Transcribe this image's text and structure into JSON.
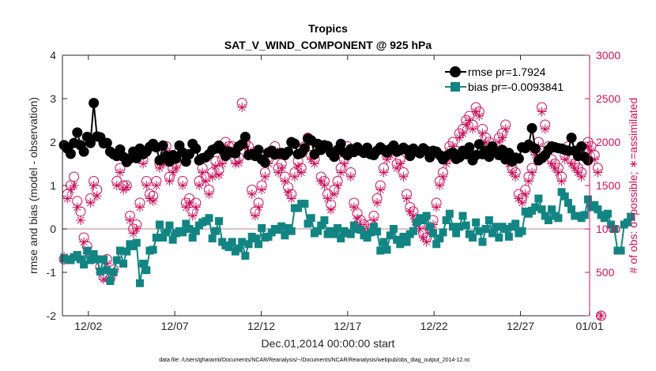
{
  "chart_data": {
    "type": "line",
    "title": "Tropics",
    "subtitle": "SAT_V_WIND_COMPONENT @ 925 hPa",
    "xlabel": "Dec.01,2014 00:00:00 start",
    "ylabel": "rmse and bias (model - observation)",
    "y2label": "# of obs: o=possible; ∗=assimilated",
    "footnote": "data file: /Users/gharamti/Documents/NCAR/Reanalysis/~/Documents/NCAR/Reanalysis/webpub/obs_diag_output_2014-12.nc",
    "xlim": [
      0.5,
      31.0
    ],
    "ylim": [
      -2,
      4
    ],
    "y2lim": [
      0,
      3000
    ],
    "xticks": [
      {
        "day": 2,
        "label": "12/02"
      },
      {
        "day": 7,
        "label": "12/07"
      },
      {
        "day": 12,
        "label": "12/12"
      },
      {
        "day": 17,
        "label": "12/17"
      },
      {
        "day": 22,
        "label": "12/22"
      },
      {
        "day": 27,
        "label": "12/27"
      },
      {
        "day": 32,
        "label": "01/01"
      }
    ],
    "yticks": [
      -2,
      -1,
      0,
      1,
      2,
      3,
      4
    ],
    "y2ticks": [
      0,
      500,
      1000,
      1500,
      2000,
      2500,
      3000
    ],
    "colors": {
      "rmse": "#000000",
      "bias": "#128583",
      "obs": "#c8105a",
      "zero": "#c8a0a8"
    },
    "series": [
      {
        "name": "rmse",
        "legend": "rmse pr=1.7924",
        "color": "#000000",
        "values": [
          1.93,
          1.85,
          1.73,
          1.98,
          2.22,
          1.93,
          1.78,
          2.12,
          1.98,
          2.9,
          2.13,
          2.11,
          1.97,
          1.98,
          1.78,
          1.72,
          1.68,
          1.83,
          1.66,
          1.54,
          1.62,
          1.78,
          1.63,
          1.85,
          1.72,
          1.78,
          1.89,
          1.96,
          1.88,
          1.58,
          1.92,
          1.68,
          1.55,
          1.7,
          1.62,
          1.92,
          1.76,
          1.55,
          1.72,
          1.96,
          1.85,
          1.58,
          1.63,
          1.65,
          1.72,
          1.82,
          1.85,
          1.92,
          1.82,
          1.68,
          1.78,
          1.76,
          1.74,
          1.9,
          1.95,
          2.12,
          1.7,
          1.72,
          1.68,
          1.82,
          1.6,
          1.53,
          1.76,
          1.8,
          1.71,
          1.73,
          1.75,
          1.7,
          1.78,
          2.0,
          1.96,
          1.72,
          1.75,
          1.86,
          2.08,
          2.04,
          1.72,
          1.96,
          1.82,
          1.93,
          1.91,
          1.75,
          1.66,
          1.82,
          1.96,
          1.76,
          1.7,
          1.84,
          1.77,
          1.88,
          1.8,
          1.75,
          1.87,
          1.72,
          1.7,
          1.8,
          1.88,
          1.82,
          1.76,
          1.84,
          1.92,
          1.78,
          1.82,
          1.87,
          1.82,
          1.68,
          1.85,
          1.78,
          1.74,
          1.86,
          1.8,
          1.65,
          1.8,
          1.78,
          1.7,
          1.6,
          1.68,
          1.72,
          1.76,
          1.61,
          1.65,
          1.8,
          1.72,
          1.88,
          1.58,
          1.7,
          1.95,
          1.72,
          1.8,
          1.66,
          1.9,
          1.78,
          1.7,
          1.82,
          1.6,
          1.75,
          1.55,
          1.64,
          1.62,
          1.88,
          1.86,
          1.94,
          2.32,
          1.85,
          1.58,
          1.63,
          1.7,
          1.82,
          1.9,
          1.88,
          1.86,
          1.85,
          1.82,
          1.8,
          2.1,
          1.8,
          1.68,
          1.9,
          1.66,
          1.58
        ]
      },
      {
        "name": "bias",
        "legend": "bias pr=-0.0093841",
        "color": "#128583",
        "values": [
          -0.68,
          -0.7,
          -0.72,
          -0.65,
          -0.6,
          -0.7,
          -0.82,
          -0.5,
          -0.72,
          -0.58,
          -0.7,
          -0.98,
          -0.7,
          -0.95,
          -1.2,
          -1.0,
          -0.72,
          -0.5,
          -0.8,
          -0.52,
          -0.35,
          -0.4,
          -0.32,
          -1.25,
          -0.8,
          -0.95,
          -0.5,
          -0.48,
          -0.2,
          0.1,
          -0.2,
          -0.08,
          0.08,
          -0.25,
          -0.1,
          -0.05,
          -0.08,
          0.12,
          0.0,
          -0.2,
          -0.05,
          0.08,
          0.15,
          0.18,
          0.25,
          -0.22,
          -0.05,
          0.18,
          -0.3,
          -0.38,
          -0.42,
          -0.3,
          -0.52,
          -0.45,
          -0.3,
          -0.62,
          -0.35,
          -0.18,
          -0.22,
          -0.35,
          0.02,
          -0.2,
          -0.18,
          -0.08,
          0.0,
          -0.02,
          0.06,
          -0.15,
          0.02,
          -0.05,
          0.48,
          0.48,
          0.58,
          0.58,
          0.12,
          0.25,
          -0.1,
          -0.05,
          0.08,
          0.2,
          -0.12,
          -0.05,
          -0.12,
          0.02,
          -0.22,
          -0.05,
          -0.1,
          -0.12,
          0.08,
          0.0,
          -0.02,
          -0.15,
          -0.2,
          -0.08,
          0.05,
          -0.06,
          -0.5,
          -0.3,
          -0.48,
          -0.15,
          0.0,
          -0.25,
          -0.35,
          -0.18,
          -0.3,
          -0.12,
          -0.05,
          0.15,
          0.25,
          0.2,
          0.3,
          0.05,
          -0.1,
          -0.35,
          -0.22,
          -0.08,
          0.2,
          0.35,
          0.05,
          -0.1,
          0.05,
          0.3,
          0.08,
          -0.12,
          -0.2,
          0.15,
          -0.05,
          -0.3,
          0.0,
          0.2,
          -0.1,
          0.05,
          -0.2,
          0.05,
          0.0,
          -0.18,
          0.05,
          0.12,
          -0.1,
          -0.05,
          0.4,
          0.35,
          0.42,
          0.5,
          0.7,
          0.45,
          0.3,
          0.2,
          0.45,
          0.3,
          0.25,
          0.85,
          0.75,
          0.6,
          0.45,
          0.3,
          0.3,
          0.25,
          0.32,
          0.68,
          0.5,
          0.55,
          0.45,
          0.32,
          0.25,
          0.35,
          0.1,
          0.0,
          -0.5,
          -0.5,
          0.1,
          0.15,
          0.28
        ]
      },
      {
        "name": "possible",
        "legend": "",
        "axis": "right",
        "color": "#c8105a",
        "values": [
          650,
          1400,
          1500,
          1600,
          1320,
          1200,
          900,
          800,
          1350,
          1550,
          1450,
          560,
          450,
          650,
          430,
          530,
          1550,
          1700,
          1500,
          1500,
          1150,
          1000,
          1050,
          1300,
          1800,
          1550,
          1400,
          1380,
          1550,
          1750,
          1800,
          1950,
          1600,
          1700,
          1750,
          1900,
          1550,
          1300,
          1350,
          1200,
          1300,
          1550,
          1700,
          1600,
          1450,
          1650,
          1780,
          1680,
          1800,
          2000,
          1950,
          1950,
          1800,
          1820,
          2450,
          2000,
          1950,
          1450,
          1200,
          1300,
          1500,
          1650,
          1800,
          1900,
          1950,
          1700,
          1750,
          1600,
          1480,
          1400,
          1650,
          1780,
          1700,
          1950,
          2050,
          1850,
          1800,
          1950,
          1600,
          1550,
          1400,
          1280,
          1450,
          1550,
          1700,
          1800,
          1950,
          1650,
          1300,
          1180,
          1100,
          1050,
          1000,
          1050,
          1150,
          1350,
          1500,
          1700,
          1850,
          1900,
          1950,
          1750,
          1800,
          1650,
          1400,
          1250,
          1200,
          1100,
          1050,
          950,
          900,
          1000,
          1100,
          1300,
          1550,
          1650,
          1800,
          1950,
          2000,
          1900,
          2100,
          2150,
          2250,
          2300,
          2200,
          2400,
          2350,
          2150,
          2050,
          2000,
          1950,
          1900,
          2050,
          2100,
          2200,
          1800,
          1700,
          1650,
          1400,
          1350,
          1450,
          1600,
          1700,
          1900,
          2000,
          2400,
          2200,
          1950,
          1800,
          1750,
          1700,
          1600,
          1850,
          1950,
          1800,
          1750,
          1700,
          1650,
          1900,
          2000,
          1950,
          1850,
          1700,
          0
        ]
      },
      {
        "name": "assimilated",
        "legend": "",
        "axis": "right",
        "color": "#c8105a",
        "values": [
          680,
          1350,
          1450,
          1500,
          1250,
          1100,
          850,
          720,
          1300,
          1500,
          1380,
          500,
          420,
          600,
          410,
          500,
          1500,
          1650,
          1450,
          1480,
          1100,
          950,
          1000,
          1250,
          1750,
          1500,
          1350,
          1320,
          1500,
          1700,
          1750,
          1900,
          1550,
          1650,
          1700,
          1850,
          1500,
          1250,
          1300,
          1150,
          1250,
          1500,
          1650,
          1550,
          1400,
          1600,
          1720,
          1620,
          1750,
          1950,
          1900,
          1900,
          1750,
          1760,
          2400,
          1950,
          1900,
          1400,
          1150,
          1250,
          1450,
          1600,
          1750,
          1850,
          1900,
          1650,
          1700,
          1550,
          1420,
          1350,
          1600,
          1720,
          1650,
          1900,
          2000,
          1800,
          1750,
          1900,
          1550,
          1500,
          1350,
          1220,
          1400,
          1500,
          1650,
          1750,
          1900,
          1600,
          1250,
          1120,
          1050,
          1000,
          950,
          1000,
          1100,
          1300,
          1450,
          1650,
          1800,
          1850,
          1900,
          1700,
          1750,
          1600,
          1350,
          1200,
          1150,
          1050,
          1000,
          900,
          850,
          950,
          1050,
          1250,
          1500,
          1600,
          1750,
          1900,
          1950,
          1850,
          2050,
          2100,
          2200,
          2250,
          2150,
          2350,
          2300,
          2100,
          2000,
          1950,
          1900,
          1850,
          2000,
          2050,
          2150,
          1750,
          1650,
          1600,
          1350,
          1300,
          1400,
          1550,
          1650,
          1850,
          1950,
          2350,
          2150,
          1900,
          1750,
          1700,
          1650,
          1550,
          1800,
          1900,
          1750,
          1700,
          1650,
          1600,
          1850,
          1950,
          1900,
          1800,
          1650,
          0
        ]
      }
    ]
  }
}
